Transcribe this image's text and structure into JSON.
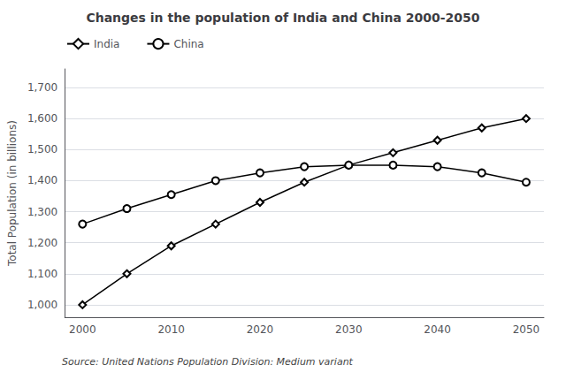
{
  "chart_data": {
    "type": "line",
    "title": "Changes in the population of India and China 2000-2050",
    "ylabel": "Total Population (in billions)",
    "annotations": [
      "Source: United Nations Population Division: Medium variant"
    ],
    "x": [
      2000,
      2005,
      2010,
      2015,
      2020,
      2025,
      2030,
      2035,
      2040,
      2045,
      2050
    ],
    "series": [
      {
        "name": "India",
        "color": "#000000",
        "marker": "diamond",
        "values": [
          1000,
          1100,
          1190,
          1260,
          1330,
          1395,
          1450,
          1490,
          1530,
          1570,
          1600
        ]
      },
      {
        "name": "China",
        "color": "#000000",
        "marker": "circle",
        "values": [
          1260,
          1310,
          1355,
          1400,
          1425,
          1445,
          1450,
          1450,
          1445,
          1425,
          1395
        ]
      }
    ],
    "xlim": [
      1998,
      2052
    ],
    "xticks": [
      2000,
      2010,
      2020,
      2030,
      2040,
      2050
    ],
    "ylim": [
      960,
      1760
    ],
    "yticks": [
      {
        "value": 1000,
        "label": "1,000"
      },
      {
        "value": 1100,
        "label": "1,100"
      },
      {
        "value": 1200,
        "label": "1,200"
      },
      {
        "value": 1300,
        "label": "1,300"
      },
      {
        "value": 1400,
        "label": "1,400"
      },
      {
        "value": 1500,
        "label": "1,500"
      },
      {
        "value": 1600,
        "label": "1,600"
      },
      {
        "value": 1700,
        "label": "1,700"
      }
    ],
    "grid": true,
    "legend": "top left"
  }
}
